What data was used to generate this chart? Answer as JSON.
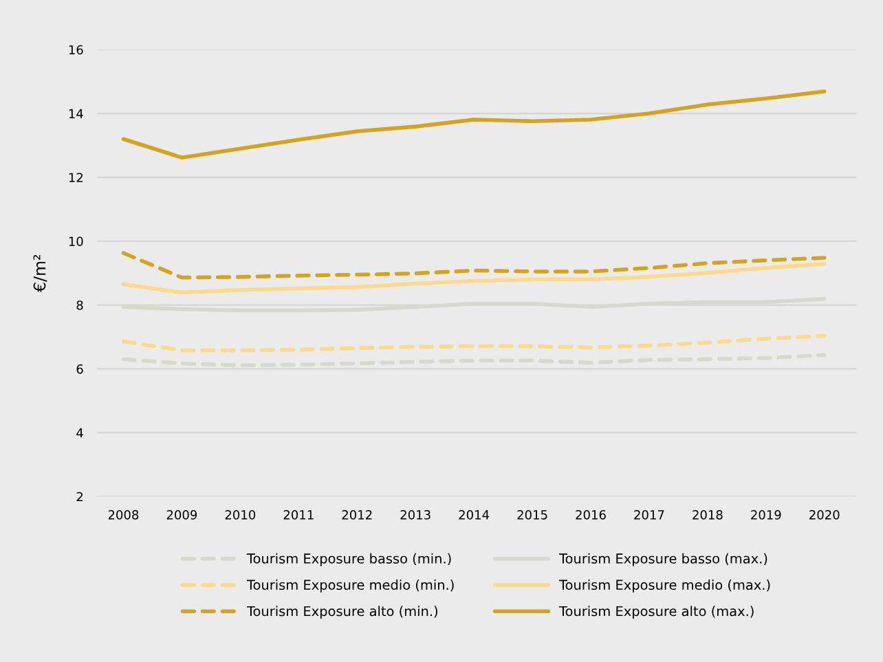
{
  "chart_data": {
    "type": "line",
    "ylabel": "€/m²",
    "categories": [
      "2008",
      "2009",
      "2010",
      "2011",
      "2012",
      "2013",
      "2014",
      "2015",
      "2016",
      "2017",
      "2018",
      "2019",
      "2020"
    ],
    "series": [
      {
        "name": "Tourism Exposure basso (min.)",
        "color": "#d8d8cc",
        "line_style": "dashed",
        "values": [
          6.3,
          6.17,
          6.11,
          6.13,
          6.17,
          6.22,
          6.26,
          6.26,
          6.19,
          6.28,
          6.3,
          6.34,
          6.43
        ]
      },
      {
        "name": "Tourism Exposure medio (min.)",
        "color": "#fdd98a",
        "line_style": "dashed",
        "values": [
          6.86,
          6.58,
          6.58,
          6.6,
          6.65,
          6.69,
          6.71,
          6.71,
          6.67,
          6.73,
          6.82,
          6.95,
          7.03
        ]
      },
      {
        "name": "Tourism Exposure alto (min.)",
        "color": "#d4a420",
        "line_style": "dashed",
        "values": [
          9.63,
          8.86,
          8.88,
          8.92,
          8.95,
          8.99,
          9.08,
          9.05,
          9.05,
          9.16,
          9.31,
          9.4,
          9.48
        ]
      },
      {
        "name": "Tourism Exposure basso (max.)",
        "color": "#d8d8cc",
        "line_style": "solid",
        "values": [
          7.94,
          7.87,
          7.83,
          7.83,
          7.85,
          7.94,
          8.04,
          8.04,
          7.94,
          8.04,
          8.09,
          8.09,
          8.19
        ]
      },
      {
        "name": "Tourism Exposure medio (max.)",
        "color": "#fdd98a",
        "line_style": "solid",
        "values": [
          8.65,
          8.39,
          8.47,
          8.52,
          8.56,
          8.67,
          8.75,
          8.8,
          8.8,
          8.88,
          9.01,
          9.16,
          9.29
        ]
      },
      {
        "name": "Tourism Exposure alto (max.)",
        "color": "#d4a420",
        "line_style": "solid",
        "values": [
          13.2,
          12.62,
          12.9,
          13.18,
          13.44,
          13.59,
          13.81,
          13.76,
          13.81,
          14.0,
          14.28,
          14.47,
          14.69
        ]
      }
    ],
    "ylim": [
      2,
      16
    ],
    "yticks": [
      2,
      4,
      6,
      8,
      10,
      12,
      14,
      16
    ],
    "grid": "y",
    "legend": "bottom",
    "marker": "none"
  }
}
